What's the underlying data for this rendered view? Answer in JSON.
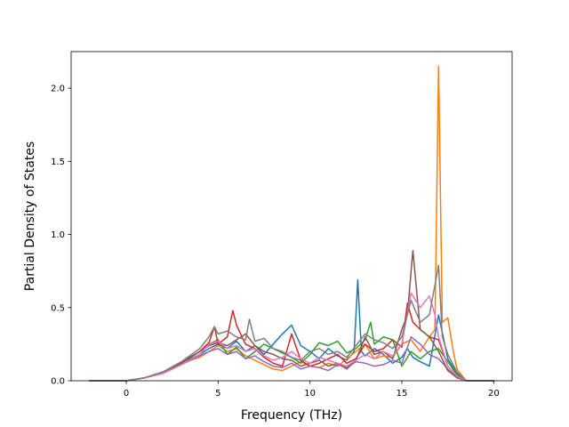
{
  "chart_data": {
    "type": "line",
    "title": "",
    "xlabel": "Frequency (THz)",
    "ylabel": "Partial Density of States",
    "xlim": [
      -3.0,
      21.0
    ],
    "ylim": [
      0.0,
      2.25
    ],
    "xticks": [
      0,
      5,
      10,
      15,
      20
    ],
    "yticks": [
      0.0,
      0.5,
      1.0,
      1.5,
      2.0
    ],
    "xtick_labels": [
      "0",
      "5",
      "10",
      "15",
      "20"
    ],
    "ytick_labels": [
      "0.0",
      "0.5",
      "1.0",
      "1.5",
      "2.0"
    ],
    "grid": false,
    "legend": "none",
    "series": [
      {
        "color": "#1f77b4",
        "x": [
          -2,
          0,
          1,
          2,
          3,
          4,
          4.5,
          5,
          5.5,
          6,
          6.5,
          7,
          7.5,
          8,
          8.5,
          9,
          9.5,
          10,
          10.5,
          11,
          11.5,
          12,
          12.4,
          12.6,
          12.8,
          13,
          13.5,
          14,
          14.5,
          15,
          15.3,
          15.6,
          16,
          16.5,
          17,
          17.5,
          18,
          18.5,
          20
        ],
        "y": [
          0,
          0,
          0.02,
          0.06,
          0.12,
          0.18,
          0.22,
          0.25,
          0.22,
          0.27,
          0.2,
          0.24,
          0.18,
          0.25,
          0.32,
          0.38,
          0.24,
          0.2,
          0.15,
          0.22,
          0.17,
          0.14,
          0.2,
          0.69,
          0.2,
          0.17,
          0.22,
          0.18,
          0.12,
          0.16,
          0.22,
          0.16,
          0.13,
          0.1,
          0.45,
          0.15,
          0.05,
          0,
          0
        ]
      },
      {
        "color": "#ff7f0e",
        "x": [
          -2,
          0,
          1,
          2,
          3,
          4,
          4.5,
          5,
          5.5,
          6,
          6.5,
          7,
          7.5,
          8,
          8.5,
          9,
          9.5,
          10,
          10.5,
          11,
          11.5,
          12,
          12.5,
          13,
          13.5,
          14,
          14.5,
          15,
          15.5,
          16,
          16.5,
          16.8,
          17.0,
          17.2,
          17.5,
          17.8,
          18,
          18.5,
          20
        ],
        "y": [
          0,
          0,
          0.02,
          0.06,
          0.12,
          0.16,
          0.2,
          0.24,
          0.2,
          0.22,
          0.17,
          0.14,
          0.11,
          0.08,
          0.07,
          0.1,
          0.13,
          0.1,
          0.09,
          0.12,
          0.1,
          0.15,
          0.2,
          0.25,
          0.15,
          0.17,
          0.16,
          0.25,
          0.28,
          0.2,
          0.3,
          0.35,
          2.15,
          0.4,
          0.43,
          0.2,
          0.08,
          0,
          0
        ]
      },
      {
        "color": "#2ca02c",
        "x": [
          -2,
          0,
          1,
          2,
          3,
          4,
          4.5,
          5,
          5.5,
          6,
          6.5,
          7,
          7.5,
          8,
          8.5,
          9,
          9.5,
          10,
          10.5,
          11,
          11.5,
          12,
          12.5,
          13,
          13.3,
          13.5,
          14,
          14.5,
          15,
          15.5,
          16,
          16.5,
          17,
          17.5,
          18,
          18.5,
          20
        ],
        "y": [
          0,
          0,
          0.02,
          0.06,
          0.13,
          0.2,
          0.25,
          0.28,
          0.18,
          0.23,
          0.15,
          0.2,
          0.25,
          0.22,
          0.19,
          0.16,
          0.12,
          0.18,
          0.26,
          0.24,
          0.27,
          0.19,
          0.22,
          0.28,
          0.4,
          0.25,
          0.3,
          0.28,
          0.1,
          0.2,
          0.15,
          0.2,
          0.22,
          0.13,
          0.04,
          0,
          0
        ]
      },
      {
        "color": "#d62728",
        "x": [
          -2,
          0,
          1,
          2,
          3,
          4,
          4.5,
          4.8,
          5,
          5.5,
          5.8,
          6,
          6.3,
          6.5,
          7,
          7.5,
          8,
          8.5,
          9,
          9.5,
          10,
          10.5,
          11,
          11.5,
          12,
          12.5,
          13,
          13.5,
          14,
          14.5,
          15,
          15.3,
          15.6,
          16,
          16.5,
          17,
          17.5,
          18,
          18.5,
          20
        ],
        "y": [
          0,
          0,
          0.02,
          0.05,
          0.12,
          0.2,
          0.26,
          0.37,
          0.25,
          0.3,
          0.48,
          0.38,
          0.3,
          0.25,
          0.22,
          0.16,
          0.12,
          0.1,
          0.32,
          0.14,
          0.1,
          0.12,
          0.15,
          0.18,
          0.12,
          0.15,
          0.25,
          0.2,
          0.22,
          0.28,
          0.23,
          0.53,
          0.4,
          0.35,
          0.3,
          0.28,
          0.1,
          0.03,
          0,
          0
        ]
      },
      {
        "color": "#9467bd",
        "x": [
          -2,
          0,
          1,
          2,
          3,
          4,
          4.5,
          5,
          5.5,
          6,
          6.5,
          7,
          7.5,
          8,
          8.5,
          9,
          9.5,
          10,
          10.5,
          11,
          11.5,
          12,
          12.5,
          13,
          13.5,
          14,
          14.5,
          15,
          15.5,
          16,
          16.5,
          17,
          17.5,
          18,
          18.5,
          20
        ],
        "y": [
          0,
          0,
          0.02,
          0.05,
          0.11,
          0.17,
          0.2,
          0.22,
          0.18,
          0.2,
          0.15,
          0.17,
          0.13,
          0.1,
          0.09,
          0.12,
          0.08,
          0.1,
          0.09,
          0.07,
          0.11,
          0.09,
          0.13,
          0.12,
          0.1,
          0.11,
          0.14,
          0.12,
          0.3,
          0.25,
          0.18,
          0.15,
          0.08,
          0.02,
          0,
          0
        ]
      },
      {
        "color": "#8c564b",
        "x": [
          -2,
          0,
          1,
          2,
          3,
          4,
          4.5,
          5,
          5.5,
          6,
          6.5,
          7,
          7.5,
          8,
          8.5,
          9,
          9.5,
          10,
          10.5,
          11,
          11.5,
          12,
          12.5,
          13,
          13.5,
          14,
          14.5,
          15,
          15.3,
          15.6,
          16,
          16.5,
          17,
          17.5,
          18,
          18.5,
          20
        ],
        "y": [
          0,
          0,
          0.02,
          0.06,
          0.12,
          0.2,
          0.24,
          0.26,
          0.24,
          0.28,
          0.32,
          0.24,
          0.2,
          0.18,
          0.15,
          0.14,
          0.1,
          0.12,
          0.14,
          0.1,
          0.12,
          0.08,
          0.14,
          0.3,
          0.18,
          0.2,
          0.15,
          0.35,
          0.45,
          0.89,
          0.35,
          0.3,
          0.2,
          0.07,
          0.02,
          0,
          0
        ]
      },
      {
        "color": "#e377c2",
        "x": [
          -2,
          0,
          1,
          2,
          3,
          4,
          4.5,
          5,
          5.5,
          6,
          6.5,
          7,
          7.5,
          8,
          8.5,
          9,
          9.5,
          10,
          10.5,
          11,
          11.5,
          12,
          12.5,
          13,
          13.5,
          14,
          14.5,
          15,
          15.5,
          16,
          16.5,
          16.8,
          17,
          17.5,
          18,
          18.5,
          20
        ],
        "y": [
          0,
          0,
          0.02,
          0.05,
          0.11,
          0.18,
          0.25,
          0.27,
          0.22,
          0.24,
          0.2,
          0.22,
          0.17,
          0.14,
          0.16,
          0.2,
          0.15,
          0.12,
          0.16,
          0.14,
          0.12,
          0.1,
          0.14,
          0.18,
          0.15,
          0.2,
          0.17,
          0.25,
          0.6,
          0.5,
          0.58,
          0.45,
          0.3,
          0.1,
          0.03,
          0,
          0
        ]
      },
      {
        "color": "#7f7f7f",
        "x": [
          -2,
          0,
          1,
          2,
          3,
          4,
          4.5,
          4.8,
          5,
          5.5,
          6,
          6.5,
          6.7,
          7,
          7.5,
          8,
          8.5,
          9,
          9.5,
          10,
          10.5,
          11,
          11.5,
          12,
          12.5,
          13,
          13.5,
          14,
          14.5,
          15,
          15.5,
          16,
          16.5,
          17,
          17.2,
          17.5,
          18,
          18.5,
          20
        ],
        "y": [
          0,
          0,
          0.02,
          0.06,
          0.13,
          0.22,
          0.3,
          0.37,
          0.32,
          0.34,
          0.3,
          0.28,
          0.42,
          0.27,
          0.29,
          0.22,
          0.2,
          0.16,
          0.14,
          0.2,
          0.22,
          0.18,
          0.2,
          0.16,
          0.24,
          0.32,
          0.28,
          0.26,
          0.22,
          0.3,
          0.55,
          0.4,
          0.45,
          0.79,
          0.3,
          0.18,
          0.06,
          0,
          0
        ]
      }
    ]
  }
}
